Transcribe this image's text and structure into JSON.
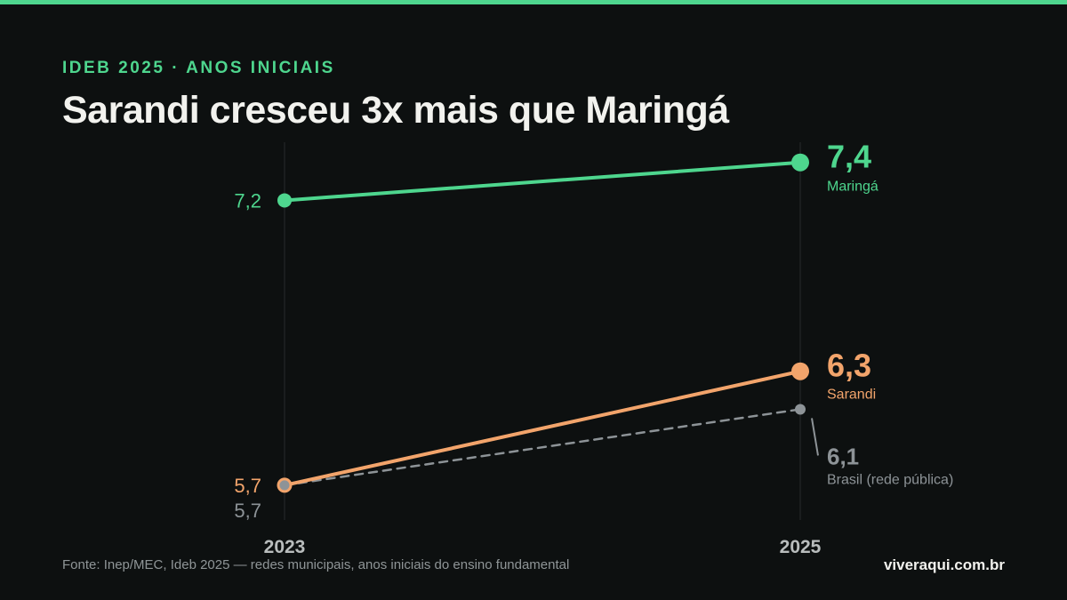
{
  "colors": {
    "background": "#0d1010",
    "accent": "#4ed68e",
    "maringa": "#4ed68e",
    "sarandi": "#f2a46b",
    "brasil": "#8d9397",
    "gridline": "#262a2b",
    "axis_text": "#b9bdbd"
  },
  "header": {
    "eyebrow": "IDEB 2025 · ANOS INICIAIS",
    "title": "Sarandi cresceu 3x mais que Maringá"
  },
  "footer": {
    "source": "Fonte: Inep/MEC, Ideb 2025 — redes municipais, anos iniciais do ensino fundamental",
    "brand": "viveraqui.com.br"
  },
  "chart_data": {
    "type": "line",
    "x": [
      "2023",
      "2025"
    ],
    "ylim": [
      5.4,
      7.6
    ],
    "grid": true,
    "series": [
      {
        "key": "maringa",
        "name": "Maringá",
        "values": [
          7.2,
          7.4
        ],
        "labels": [
          "7,2",
          "7,4"
        ],
        "style": "solid"
      },
      {
        "key": "sarandi",
        "name": "Sarandi",
        "values": [
          5.7,
          6.3
        ],
        "labels": [
          "5,7",
          "6,3"
        ],
        "style": "solid"
      },
      {
        "key": "brasil",
        "name": "Brasil (rede pública)",
        "values": [
          5.7,
          6.1
        ],
        "labels": [
          "5,7",
          "6,1"
        ],
        "style": "dashed"
      }
    ]
  }
}
